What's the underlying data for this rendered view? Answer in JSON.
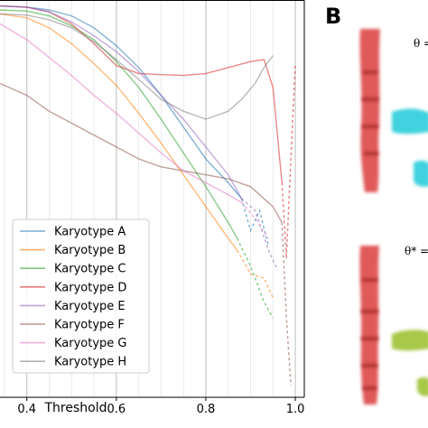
{
  "chart_data": {
    "type": "line",
    "xlabel": "Threshold",
    "ylabel": "",
    "xlim": [
      0.34,
      1.02
    ],
    "ylim": [
      0.0,
      1.0
    ],
    "xticks": [
      0.4,
      0.6,
      0.8,
      1.0
    ],
    "xtick_labels": [
      "0.4",
      "0.6",
      "0.8",
      "1.0"
    ],
    "grid": "vertical",
    "legend_position": "bottom-left",
    "series": [
      {
        "name": "Karyotype A",
        "color": "#1f77b4",
        "x": [
          0.34,
          0.4,
          0.45,
          0.5,
          0.55,
          0.6,
          0.65,
          0.7,
          0.75,
          0.8,
          0.85,
          0.88
        ],
        "y": [
          0.985,
          0.982,
          0.975,
          0.96,
          0.93,
          0.885,
          0.83,
          0.76,
          0.68,
          0.6,
          0.54,
          0.5
        ],
        "dashed_x": [
          0.88,
          0.9,
          0.92,
          0.94
        ],
        "dashed_y": [
          0.5,
          0.42,
          0.47,
          0.38
        ]
      },
      {
        "name": "Karyotype B",
        "color": "#ff7f0e",
        "x": [
          0.34,
          0.4,
          0.45,
          0.5,
          0.55,
          0.6,
          0.65,
          0.7,
          0.75,
          0.8,
          0.85,
          0.87
        ],
        "y": [
          0.965,
          0.955,
          0.93,
          0.89,
          0.84,
          0.785,
          0.715,
          0.64,
          0.56,
          0.48,
          0.4,
          0.37
        ],
        "dashed_x": [
          0.87,
          0.9,
          0.93,
          0.95
        ],
        "dashed_y": [
          0.37,
          0.31,
          0.3,
          0.25
        ]
      },
      {
        "name": "Karyotype C",
        "color": "#2ca02c",
        "x": [
          0.34,
          0.4,
          0.45,
          0.5,
          0.55,
          0.6,
          0.65,
          0.7,
          0.75,
          0.8,
          0.85,
          0.87
        ],
        "y": [
          0.975,
          0.972,
          0.96,
          0.935,
          0.9,
          0.845,
          0.78,
          0.7,
          0.615,
          0.53,
          0.44,
          0.4
        ],
        "dashed_x": [
          0.87,
          0.9,
          0.93,
          0.95
        ],
        "dashed_y": [
          0.4,
          0.33,
          0.24,
          0.2
        ]
      },
      {
        "name": "Karyotype D",
        "color": "#d62728",
        "x": [
          0.34,
          0.4,
          0.45,
          0.5,
          0.55,
          0.6,
          0.65,
          0.7,
          0.75,
          0.8,
          0.85,
          0.9,
          0.93,
          0.95,
          0.97
        ],
        "y": [
          0.985,
          0.982,
          0.97,
          0.94,
          0.89,
          0.835,
          0.815,
          0.812,
          0.81,
          0.815,
          0.83,
          0.845,
          0.85,
          0.78,
          0.54
        ],
        "dashed_x": [
          0.97,
          0.98,
          0.99,
          1.0
        ],
        "dashed_y": [
          0.54,
          0.35,
          0.6,
          0.84
        ]
      },
      {
        "name": "Karyotype E",
        "color": "#9467bd",
        "x": [
          0.34,
          0.4,
          0.45,
          0.5,
          0.55,
          0.6,
          0.65,
          0.7,
          0.75,
          0.8,
          0.85,
          0.88
        ],
        "y": [
          0.985,
          0.982,
          0.97,
          0.945,
          0.91,
          0.87,
          0.82,
          0.76,
          0.7,
          0.63,
          0.56,
          0.5
        ],
        "dashed_x": [
          0.88,
          0.91,
          0.94,
          0.96
        ],
        "dashed_y": [
          0.5,
          0.47,
          0.37,
          0.32
        ]
      },
      {
        "name": "Karyotype F",
        "color": "#8c564b",
        "x": [
          0.34,
          0.4,
          0.45,
          0.5,
          0.55,
          0.6,
          0.65,
          0.7,
          0.75,
          0.8,
          0.85,
          0.9,
          0.95,
          0.97
        ],
        "y": [
          0.79,
          0.76,
          0.72,
          0.69,
          0.66,
          0.63,
          0.6,
          0.58,
          0.57,
          0.56,
          0.55,
          0.53,
          0.48,
          0.44
        ],
        "dashed_x": [
          0.97,
          0.98,
          0.99
        ],
        "dashed_y": [
          0.44,
          0.2,
          0.03
        ]
      },
      {
        "name": "Karyotype G",
        "color": "#e377c2",
        "x": [
          0.34,
          0.4,
          0.45,
          0.5,
          0.55,
          0.6,
          0.65,
          0.7,
          0.75,
          0.8,
          0.85,
          0.88
        ],
        "y": [
          0.94,
          0.9,
          0.855,
          0.81,
          0.76,
          0.715,
          0.665,
          0.615,
          0.57,
          0.54,
          0.51,
          0.49
        ],
        "dashed_x": [
          0.88,
          0.91,
          0.94
        ],
        "dashed_y": [
          0.49,
          0.45,
          0.4
        ]
      },
      {
        "name": "Karyotype H",
        "color": "#7f7f7f",
        "x": [
          0.34,
          0.4,
          0.45,
          0.5,
          0.55,
          0.6,
          0.65,
          0.7,
          0.75,
          0.8,
          0.85,
          0.88,
          0.91,
          0.93,
          0.95
        ],
        "y": [
          0.965,
          0.962,
          0.95,
          0.93,
          0.895,
          0.85,
          0.8,
          0.75,
          0.72,
          0.7,
          0.72,
          0.75,
          0.79,
          0.83,
          0.86
        ],
        "dashed_x": [],
        "dashed_y": []
      }
    ]
  },
  "panel_b": {
    "letter": "B",
    "theta_top": "θ =",
    "theta_bottom": "θ* =",
    "colors": {
      "red": "#e05a5a",
      "cyan": "#3fd2de",
      "green": "#a8c84a"
    }
  }
}
